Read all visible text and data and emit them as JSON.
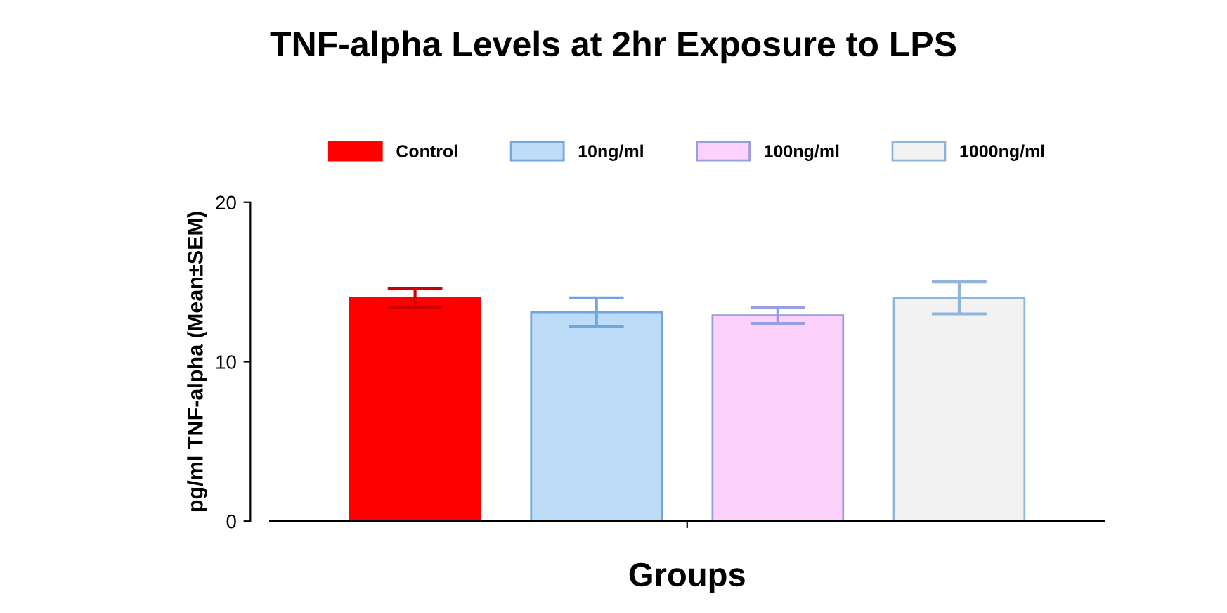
{
  "chart_data": {
    "type": "bar",
    "title": "TNF-alpha Levels at 2hr Exposure to LPS",
    "xlabel": "Groups",
    "ylabel": "pg/ml TNF-alpha (Mean±SEM)",
    "categories": [
      null,
      null,
      null,
      null
    ],
    "series": [
      {
        "name": "Control",
        "color": "#ff0000",
        "values": [
          14.0,
          null,
          null,
          null
        ],
        "errors": [
          0.6,
          null,
          null,
          null
        ]
      },
      {
        "name": "10ng/ml",
        "color": "#bddcf8",
        "values": [
          null,
          13.1,
          null,
          null
        ],
        "errors": [
          null,
          0.9,
          null,
          null
        ]
      },
      {
        "name": "100ng/ml",
        "color": "#fcd2fc",
        "values": [
          null,
          null,
          12.9,
          null
        ],
        "errors": [
          null,
          null,
          0.5,
          null
        ]
      },
      {
        "name": "1000ng/ml",
        "color": "#f2f2f2",
        "values": [
          null,
          null,
          null,
          14.0
        ],
        "errors": [
          null,
          null,
          null,
          1.0
        ]
      }
    ],
    "ylim": [
      0,
      20
    ],
    "yticks": [
      0,
      10,
      20
    ],
    "grid": false,
    "legend": "top"
  }
}
